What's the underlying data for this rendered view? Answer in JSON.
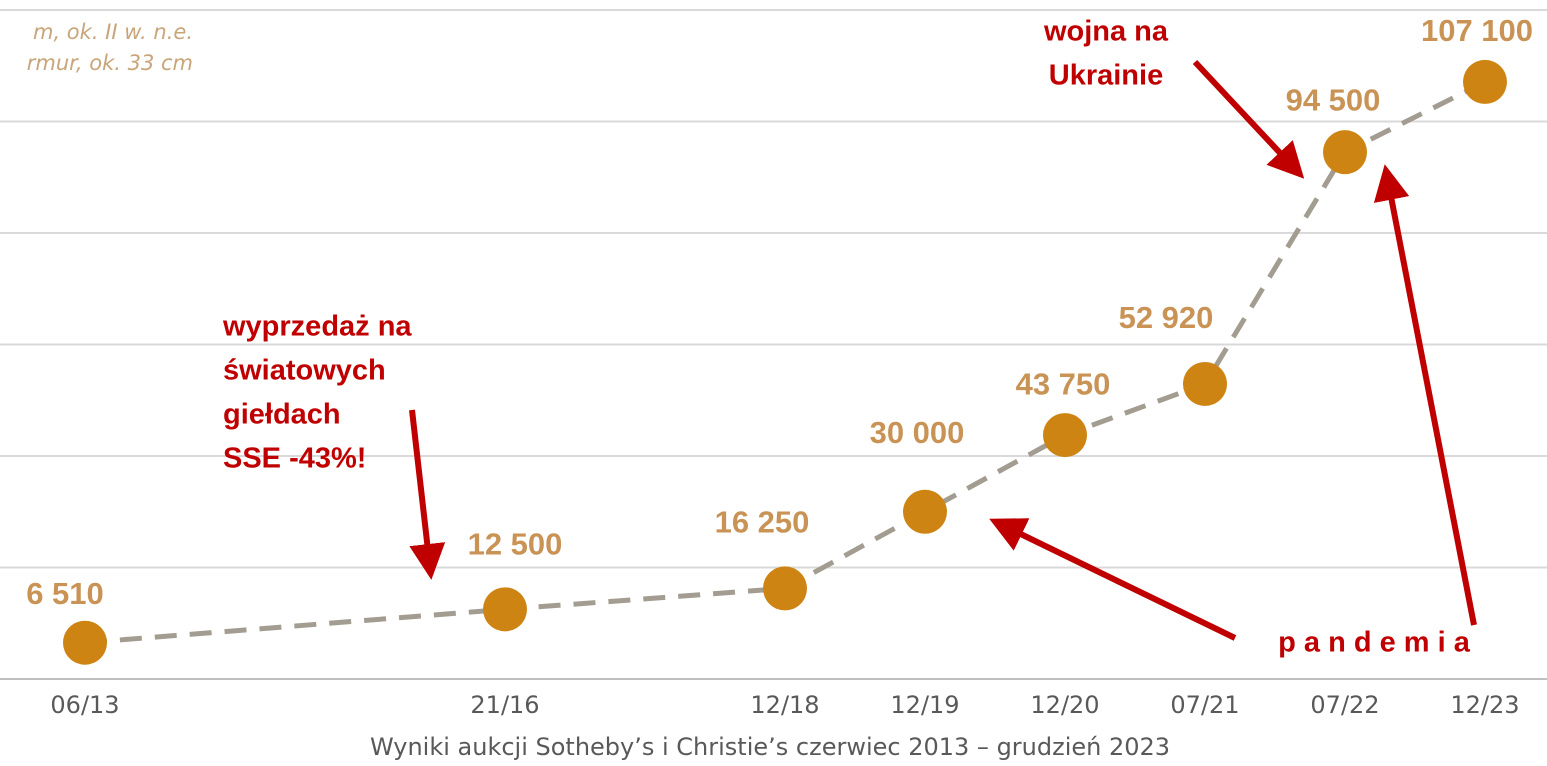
{
  "chart_data": {
    "type": "line",
    "categories": [
      "06/13",
      "21/16",
      "12/18",
      "12/19",
      "12/20",
      "07/21",
      "07/22",
      "12/23"
    ],
    "series": [
      {
        "color": "#cd8412",
        "line_color": "#a39c91",
        "values": [
          6510,
          12500,
          16250,
          30000,
          43750,
          52920,
          94500,
          107100
        ],
        "value_labels": [
          "6 510",
          "12 500",
          "16 250",
          "30 000",
          "43 750",
          "52 920",
          "94 500",
          "107 100"
        ]
      }
    ],
    "ylim": [
      0,
      120000
    ],
    "yticks": [
      0,
      20000,
      40000,
      60000,
      80000,
      100000,
      120000
    ],
    "grid": true,
    "x_label": "Wyniki aukcji Sotheby’s i Christie’s czerwiec 2013 – grudzień 2023",
    "side_caption": [
      "m, ok. II w. n.e.",
      "rmur, ok. 33 cm"
    ],
    "annotations": [
      {
        "lines": [
          "wojna na",
          "Ukrainie"
        ]
      },
      {
        "lines": [
          "wyprzedaż na",
          "światowych",
          "giełdach",
          "SSE -43%!"
        ]
      },
      {
        "lines": [
          "p a n d e m i a"
        ]
      }
    ]
  }
}
